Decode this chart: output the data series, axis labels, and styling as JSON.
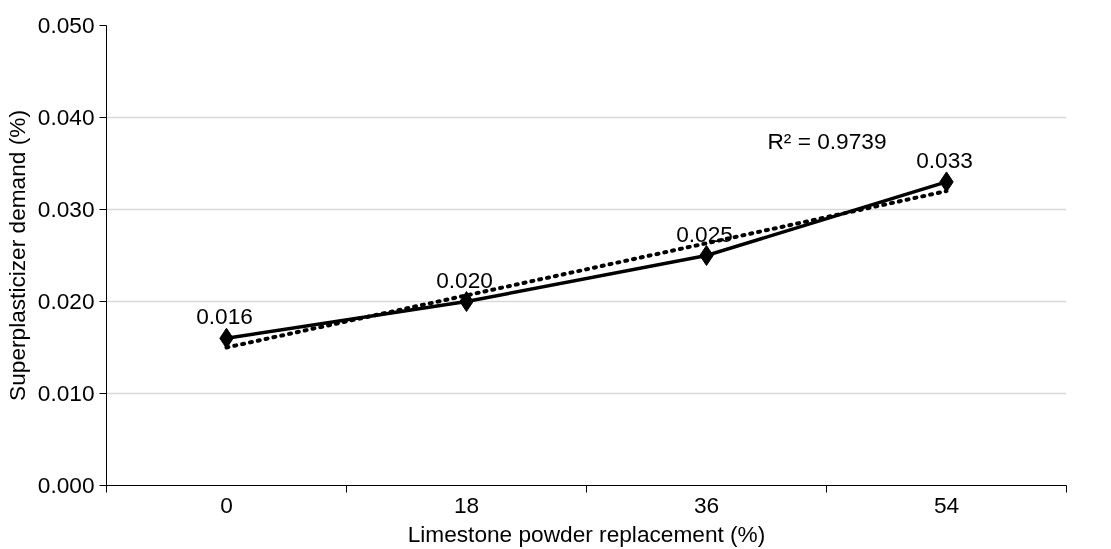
{
  "chart_data": {
    "type": "line",
    "xlabel": "Limestone powder replacement (%)",
    "ylabel": "Superplasticizer demand (%)",
    "categories": [
      "0",
      "18",
      "36",
      "54"
    ],
    "series": [
      {
        "color": "#000000",
        "marker": "diamond",
        "line_style": "solid",
        "values": [
          0.016,
          0.02,
          0.025,
          0.033
        ],
        "value_labels": [
          "0.016",
          "0.020",
          "0.025",
          "0.033"
        ]
      },
      {
        "color": "#000000",
        "marker": "none",
        "line_style": "dotted",
        "x": [
          "0",
          "54"
        ],
        "values": [
          0.015,
          0.032
        ]
      }
    ],
    "annotations": [
      "R² = 0.9739"
    ],
    "ylim": [
      0,
      0.05
    ],
    "yticks": [
      {
        "value": 0,
        "label": "0.000"
      },
      {
        "value": 0.01,
        "label": "0.010"
      },
      {
        "value": 0.02,
        "label": "0.020"
      },
      {
        "value": 0.03,
        "label": "0.030"
      },
      {
        "value": 0.04,
        "label": "0.040"
      },
      {
        "value": 0.05,
        "label": "0.050"
      }
    ],
    "grid": "y"
  }
}
